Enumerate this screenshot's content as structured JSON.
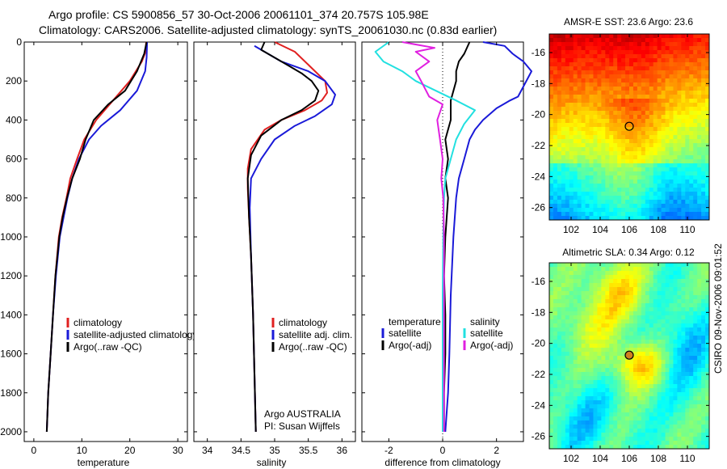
{
  "title_line1": "Argo profile: CS 5900856_57 30-Oct-2006 20061101_374 20.757S 105.98E",
  "title_line2": "Climatology: CARS2006. Satellite-adjusted climatology: synTS_20061030.nc (0.83d earlier)",
  "credit": "CSIRO 09-Nov-2006 09:01:52",
  "colors": {
    "climatology": "#e02020",
    "satellite": "#1a1ad8",
    "argo": "#000000",
    "sal_satellite": "#22e0e0",
    "sal_argo": "#e020e0"
  },
  "chart_data": [
    {
      "type": "line",
      "id": "temperature",
      "xlabel": "temperature",
      "ylabel": "",
      "xlim": [
        -2,
        32
      ],
      "ylim": [
        2050,
        0
      ],
      "xticks": [
        0,
        10,
        20,
        30
      ],
      "yticks": [
        0,
        200,
        400,
        600,
        800,
        1000,
        1200,
        1400,
        1600,
        1800,
        2000
      ],
      "legend": [
        "climatology",
        "satellite-adjusted climatology",
        "Argo(..raw -QC)"
      ],
      "series": [
        {
          "name": "climatology",
          "color_key": "climatology",
          "points": [
            [
              23.4,
              0
            ],
            [
              23.3,
              50
            ],
            [
              22.5,
              100
            ],
            [
              20,
              200
            ],
            [
              16.5,
              300
            ],
            [
              13,
              400
            ],
            [
              10.5,
              500
            ],
            [
              9,
              600
            ],
            [
              7.6,
              700
            ],
            [
              6.8,
              800
            ],
            [
              5.9,
              900
            ],
            [
              5.2,
              1000
            ],
            [
              4.5,
              1200
            ],
            [
              4,
              1400
            ],
            [
              3.5,
              1600
            ],
            [
              3.0,
              1800
            ],
            [
              2.7,
              2000
            ]
          ]
        },
        {
          "name": "satellite-adjusted climatology",
          "color_key": "satellite",
          "points": [
            [
              23.6,
              0
            ],
            [
              23.5,
              80
            ],
            [
              23.2,
              150
            ],
            [
              21.5,
              250
            ],
            [
              18,
              350
            ],
            [
              14,
              430
            ],
            [
              11.5,
              500
            ],
            [
              9.4,
              600
            ],
            [
              8,
              700
            ],
            [
              7,
              800
            ],
            [
              6.2,
              900
            ],
            [
              5.4,
              1000
            ],
            [
              4.6,
              1200
            ],
            [
              4,
              1400
            ],
            [
              3.5,
              1600
            ],
            [
              3.0,
              1800
            ],
            [
              2.7,
              2000
            ]
          ]
        },
        {
          "name": "Argo(..raw -QC)",
          "color_key": "argo",
          "points": [
            [
              23.5,
              0
            ],
            [
              23.0,
              60
            ],
            [
              21.5,
              150
            ],
            [
              19,
              250
            ],
            [
              15.5,
              320
            ],
            [
              12.5,
              400
            ],
            [
              10.8,
              500
            ],
            [
              9.6,
              600
            ],
            [
              8,
              700
            ],
            [
              6.9,
              800
            ],
            [
              6,
              900
            ],
            [
              5.3,
              1000
            ],
            [
              4.5,
              1200
            ],
            [
              4,
              1400
            ],
            [
              3.5,
              1600
            ],
            [
              3.0,
              1800
            ],
            [
              2.7,
              2000
            ]
          ]
        }
      ]
    },
    {
      "type": "line",
      "id": "salinity",
      "xlabel": "salinity",
      "ylabel": "",
      "xlim": [
        33.8,
        36.2
      ],
      "ylim": [
        2050,
        0
      ],
      "xticks": [
        34,
        34.5,
        35,
        35.5,
        36
      ],
      "legend": [
        "climatology",
        "satellite adj. clim.",
        "Argo(..raw -QC)"
      ],
      "annotation": [
        "Argo AUSTRALIA",
        "PI: Susan Wijffels"
      ],
      "series": [
        {
          "name": "climatology",
          "color_key": "climatology",
          "points": [
            [
              35.0,
              0
            ],
            [
              35.3,
              50
            ],
            [
              35.6,
              150
            ],
            [
              35.75,
              200
            ],
            [
              35.78,
              260
            ],
            [
              35.7,
              300
            ],
            [
              35.45,
              350
            ],
            [
              35.1,
              400
            ],
            [
              34.85,
              450
            ],
            [
              34.65,
              550
            ],
            [
              34.6,
              650
            ],
            [
              34.6,
              750
            ],
            [
              34.62,
              900
            ],
            [
              34.65,
              1100
            ],
            [
              34.68,
              1400
            ],
            [
              34.7,
              1700
            ],
            [
              34.72,
              2000
            ]
          ]
        },
        {
          "name": "satellite adj. clim.",
          "color_key": "satellite",
          "points": [
            [
              34.7,
              20
            ],
            [
              34.85,
              50
            ],
            [
              35.1,
              100
            ],
            [
              35.5,
              150
            ],
            [
              35.75,
              200
            ],
            [
              35.9,
              270
            ],
            [
              35.85,
              320
            ],
            [
              35.6,
              380
            ],
            [
              35.3,
              430
            ],
            [
              35.0,
              500
            ],
            [
              34.8,
              600
            ],
            [
              34.65,
              700
            ],
            [
              34.63,
              850
            ],
            [
              34.65,
              1100
            ],
            [
              34.68,
              1400
            ],
            [
              34.7,
              1700
            ],
            [
              34.72,
              2000
            ]
          ]
        },
        {
          "name": "Argo(..raw -QC)",
          "color_key": "argo",
          "points": [
            [
              34.85,
              0
            ],
            [
              34.8,
              40
            ],
            [
              35.0,
              80
            ],
            [
              35.2,
              120
            ],
            [
              35.4,
              160
            ],
            [
              35.55,
              200
            ],
            [
              35.65,
              250
            ],
            [
              35.6,
              300
            ],
            [
              35.4,
              350
            ],
            [
              35.1,
              400
            ],
            [
              34.8,
              480
            ],
            [
              34.65,
              580
            ],
            [
              34.6,
              700
            ],
            [
              34.62,
              900
            ],
            [
              34.65,
              1100
            ],
            [
              34.68,
              1400
            ],
            [
              34.7,
              1700
            ],
            [
              34.72,
              2000
            ]
          ]
        }
      ]
    },
    {
      "type": "line",
      "id": "difference",
      "xlabel": "difference from climatology",
      "xlim": [
        -3,
        3
      ],
      "ylim": [
        2050,
        0
      ],
      "xticks": [
        -2,
        0,
        2
      ],
      "legend_temperature": {
        "heading": "temperature",
        "items": [
          "satellite",
          "Argo(-adj)"
        ]
      },
      "legend_salinity": {
        "heading": "salinity",
        "items": [
          "satellite",
          "Argo(-adj)"
        ]
      },
      "series": [
        {
          "name": "temperature satellite",
          "color_key": "satellite",
          "points": [
            [
              1.5,
              0
            ],
            [
              2.3,
              20
            ],
            [
              2.6,
              60
            ],
            [
              2.8,
              80
            ],
            [
              3,
              100
            ],
            [
              3.3,
              150
            ],
            [
              2.8,
              280
            ],
            [
              2.5,
              300
            ],
            [
              2,
              340
            ],
            [
              1.5,
              400
            ],
            [
              1.2,
              450
            ],
            [
              1.0,
              500
            ],
            [
              0.8,
              600
            ],
            [
              0.6,
              700
            ],
            [
              0.5,
              800
            ],
            [
              0.4,
              1000
            ],
            [
              0.3,
              1300
            ],
            [
              0.25,
              1600
            ],
            [
              0.2,
              1800
            ],
            [
              0.1,
              2000
            ]
          ]
        },
        {
          "name": "temperature Argo(-adj)",
          "color_key": "argo",
          "points": [
            [
              1.0,
              0
            ],
            [
              0.8,
              60
            ],
            [
              0.6,
              100
            ],
            [
              0.5,
              150
            ],
            [
              0.5,
              200
            ],
            [
              0.3,
              300
            ],
            [
              0.3,
              400
            ],
            [
              0.1,
              500
            ],
            [
              0.2,
              600
            ],
            [
              0.1,
              700
            ],
            [
              0.2,
              800
            ],
            [
              0.1,
              1000
            ],
            [
              0.05,
              1200
            ],
            [
              0.1,
              1400
            ],
            [
              0.1,
              1600
            ],
            [
              0.05,
              1800
            ],
            [
              0.05,
              2000
            ]
          ]
        },
        {
          "name": "salinity satellite",
          "color_key": "sal_satellite",
          "points": [
            [
              -2.0,
              0
            ],
            [
              -2.5,
              50
            ],
            [
              -2.2,
              100
            ],
            [
              -1.5,
              150
            ],
            [
              -1.0,
              200
            ],
            [
              0.5,
              300
            ],
            [
              1.2,
              350
            ],
            [
              0.8,
              420
            ],
            [
              0.5,
              500
            ],
            [
              0.3,
              600
            ],
            [
              0.1,
              700
            ],
            [
              0.05,
              800
            ],
            [
              0.02,
              1000
            ],
            [
              0.0,
              1300
            ],
            [
              0.0,
              1600
            ],
            [
              0.0,
              2000
            ]
          ]
        },
        {
          "name": "salinity Argo(-adj)",
          "color_key": "sal_argo",
          "points": [
            [
              -1.5,
              0
            ],
            [
              -0.3,
              30
            ],
            [
              -1.0,
              50
            ],
            [
              -0.5,
              100
            ],
            [
              -1.0,
              150
            ],
            [
              -0.8,
              200
            ],
            [
              -0.5,
              280
            ],
            [
              0.0,
              320
            ],
            [
              -0.2,
              400
            ],
            [
              -0.1,
              500
            ],
            [
              0.0,
              600
            ],
            [
              -0.05,
              700
            ],
            [
              0.02,
              800
            ],
            [
              0.05,
              1000
            ],
            [
              0.05,
              1300
            ],
            [
              0.05,
              1600
            ],
            [
              0.05,
              2000
            ]
          ]
        }
      ]
    },
    {
      "type": "heatmap",
      "id": "sst_map",
      "title": "AMSR-E SST: 23.6  Argo: 23.6",
      "xlim": [
        100.5,
        111.5
      ],
      "ylim": [
        -26.8,
        -14.8
      ],
      "xticks": [
        102,
        104,
        106,
        108,
        110
      ],
      "yticks": [
        -16,
        -18,
        -20,
        -22,
        -24,
        -26
      ],
      "marker": [
        106.0,
        -20.76
      ]
    },
    {
      "type": "heatmap",
      "id": "sla_map",
      "title": "Altimetric SLA: 0.34  Argo: 0.12",
      "xlim": [
        100.5,
        111.5
      ],
      "ylim": [
        -26.8,
        -14.8
      ],
      "xticks": [
        102,
        104,
        106,
        108,
        110
      ],
      "yticks": [
        -16,
        -18,
        -20,
        -22,
        -24,
        -26
      ],
      "marker": [
        106.0,
        -20.76
      ]
    }
  ]
}
